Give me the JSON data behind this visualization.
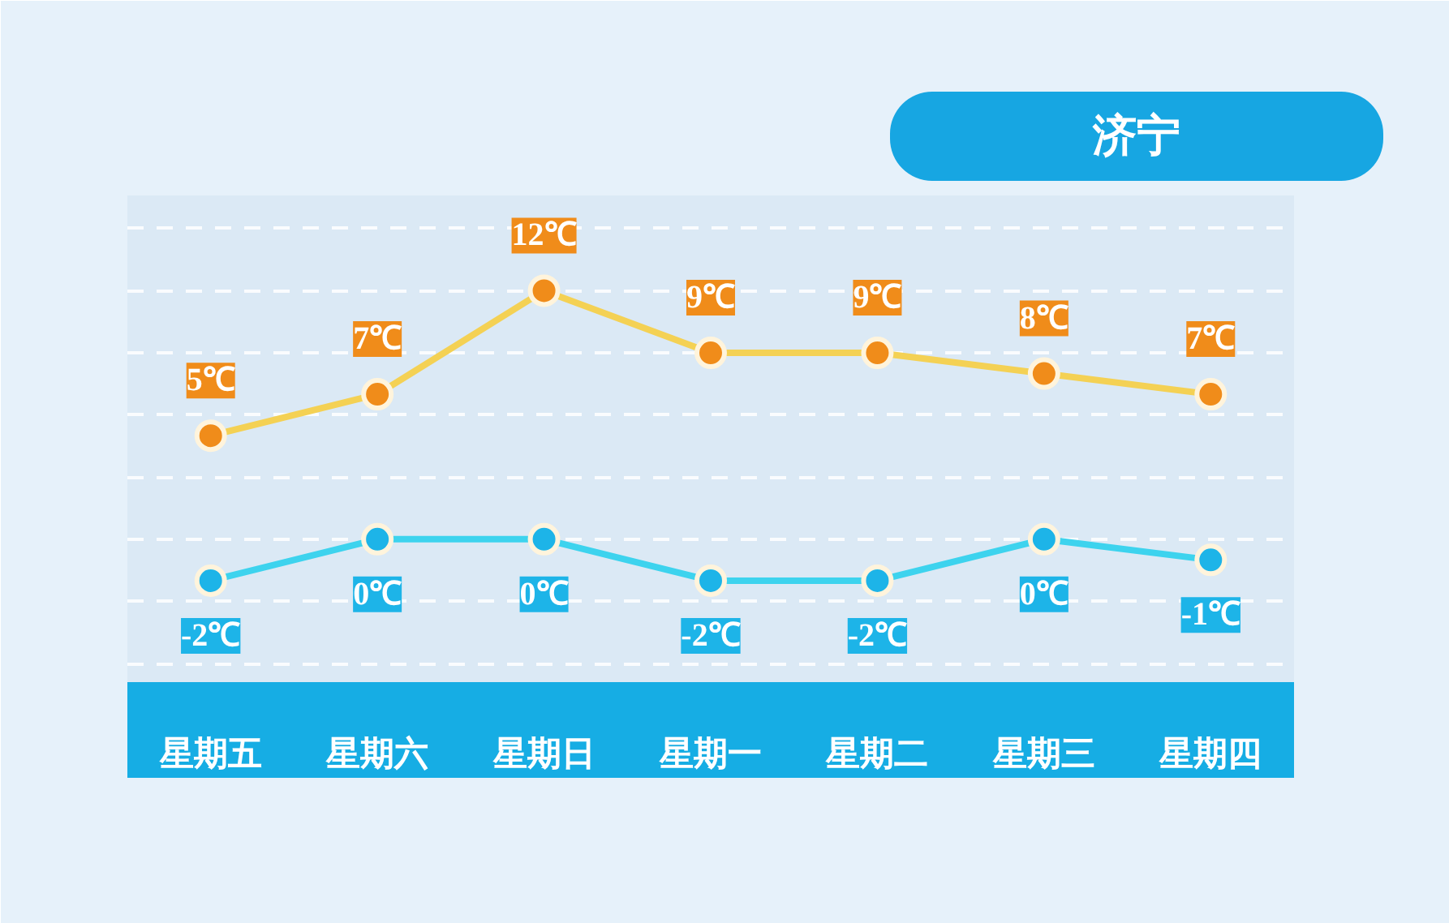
{
  "chart_data": {
    "type": "line",
    "title": "济宁",
    "categories": [
      "星期五",
      "星期六",
      "星期日",
      "星期一",
      "星期二",
      "星期三",
      "星期四"
    ],
    "series": [
      {
        "color": "#f4d154",
        "colors": [
          "#f08c1a",
          "#f08c1a",
          "#f08c1a",
          "#f08c1a",
          "#f08c1a",
          "#f08c1a",
          "#f08c1a"
        ],
        "values": [
          5,
          7,
          12,
          9,
          9,
          8,
          7
        ],
        "value_labels": [
          "5℃",
          "7℃",
          "12℃",
          "9℃",
          "9℃",
          "8℃",
          "7℃"
        ]
      },
      {
        "color": "#3dd3ee",
        "colors": [
          "#1db4e8",
          "#1db4e8",
          "#1db4e8",
          "#1db4e8",
          "#1db4e8",
          "#1db4e8",
          "#1db4e8"
        ],
        "values": [
          -2,
          0,
          0,
          -2,
          -2,
          0,
          -1
        ],
        "value_labels": [
          "-2℃",
          "0℃",
          "0℃",
          "-2℃",
          "-2℃",
          "0℃",
          "-1℃"
        ]
      }
    ],
    "ylim": [
      -6.9,
      16.6
    ],
    "yticks": [
      {
        "value": -6,
        "label": null
      },
      {
        "value": -3,
        "label": null
      },
      {
        "value": 0,
        "label": null
      },
      {
        "value": 3,
        "label": null
      },
      {
        "value": 6,
        "label": null
      },
      {
        "value": 9,
        "label": null
      },
      {
        "value": 12,
        "label": null
      },
      {
        "value": 15,
        "label": null
      }
    ],
    "grid": "y",
    "tick_labels": "x",
    "marker": "circle",
    "line_style": "solid"
  }
}
